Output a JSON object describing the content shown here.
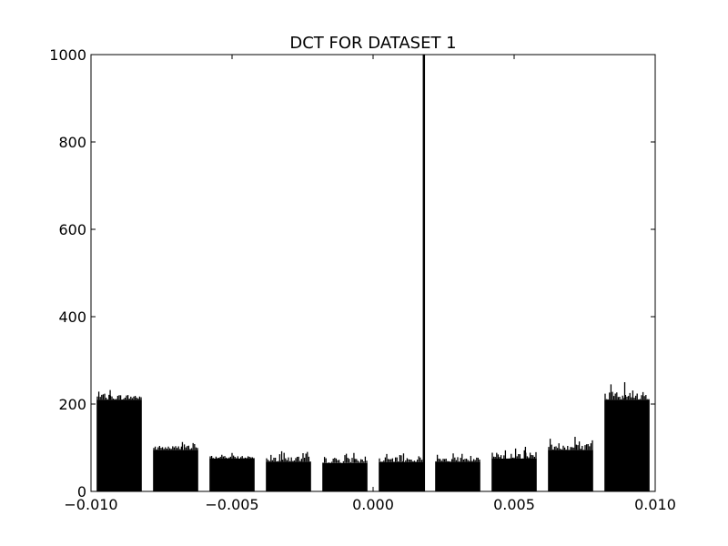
{
  "chart_data": {
    "type": "bar",
    "title": "DCT FOR DATASET 1",
    "xlabel": "",
    "ylabel": "",
    "xlim": [
      -0.01,
      0.01
    ],
    "ylim": [
      0,
      1000
    ],
    "x_ticks": [
      -0.01,
      -0.005,
      0.0,
      0.005,
      0.01
    ],
    "x_tick_labels": [
      "−0.010",
      "−0.005",
      "0.000",
      "0.005",
      "0.010"
    ],
    "y_ticks": [
      0,
      200,
      400,
      600,
      800,
      1000
    ],
    "y_tick_labels": [
      "0",
      "200",
      "400",
      "600",
      "800",
      "1000"
    ],
    "grid": false,
    "bar_color": "#000000",
    "series": [
      {
        "bar_groups": [
          {
            "x_start": -0.0098,
            "x_end": -0.0082,
            "base_level": 210,
            "peak": 232
          },
          {
            "x_start": -0.0078,
            "x_end": -0.0062,
            "base_level": 95,
            "peak": 113
          },
          {
            "x_start": -0.0058,
            "x_end": -0.0042,
            "base_level": 75,
            "peak": 88
          },
          {
            "x_start": -0.0038,
            "x_end": -0.0022,
            "base_level": 68,
            "peak": 92
          },
          {
            "x_start": -0.0018,
            "x_end": -0.0002,
            "base_level": 65,
            "peak": 88
          },
          {
            "x_start": 0.0002,
            "x_end": 0.0018,
            "base_level": 67,
            "peak": 87
          },
          {
            "x_start": 0.0022,
            "x_end": 0.0038,
            "base_level": 68,
            "peak": 87
          },
          {
            "x_start": 0.0042,
            "x_end": 0.0058,
            "base_level": 75,
            "peak": 102
          },
          {
            "x_start": 0.0062,
            "x_end": 0.0078,
            "base_level": 95,
            "peak": 125
          },
          {
            "x_start": 0.0082,
            "x_end": 0.0098,
            "base_level": 210,
            "peak": 250
          }
        ],
        "spike": {
          "x": 0.0018,
          "value": 1000
        }
      }
    ]
  }
}
